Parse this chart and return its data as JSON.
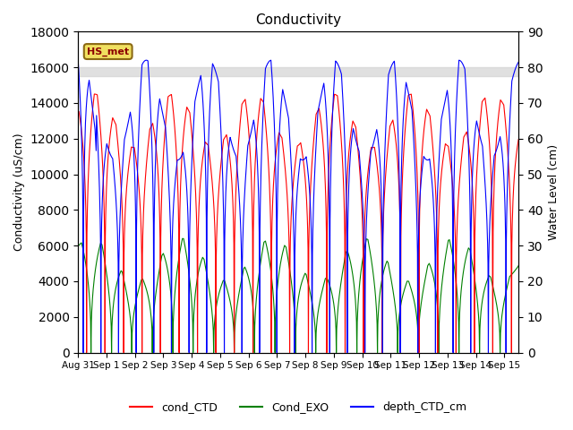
{
  "title": "Conductivity",
  "xlabel": "",
  "ylabel_left": "Conductivity (uS/cm)",
  "ylabel_right": "Water Level (cm)",
  "ylim_left": [
    0,
    18000
  ],
  "ylim_right": [
    0,
    90
  ],
  "shade_region": [
    15500,
    16000
  ],
  "hs_met_label": "HS_met",
  "tick_labels": [
    "Aug 31",
    "Sep 1",
    "Sep 2",
    "Sep 3",
    "Sep 4",
    "Sep 5",
    "Sep 6",
    "Sep 7",
    "Sep 8",
    "Sep 9",
    "Sep 10",
    "Sep 11",
    "Sep 12",
    "Sep 13",
    "Sep 14",
    "Sep 15"
  ],
  "legend": [
    {
      "label": "cond_CTD",
      "color": "red"
    },
    {
      "label": "Cond_EXO",
      "color": "green"
    },
    {
      "label": "depth_CTD_cm",
      "color": "blue"
    }
  ],
  "background_color": "#ffffff"
}
